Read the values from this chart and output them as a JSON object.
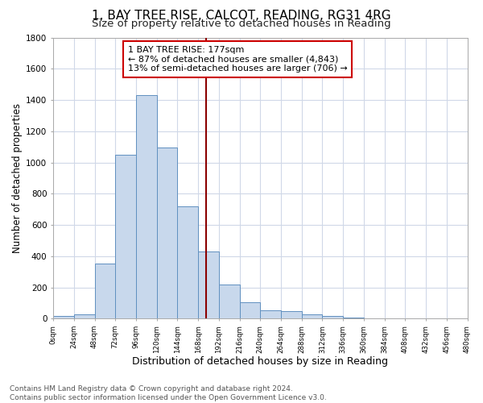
{
  "title": "1, BAY TREE RISE, CALCOT, READING, RG31 4RG",
  "subtitle": "Size of property relative to detached houses in Reading",
  "xlabel": "Distribution of detached houses by size in Reading",
  "ylabel": "Number of detached properties",
  "bin_edges": [
    0,
    24,
    48,
    72,
    96,
    120,
    144,
    168,
    192,
    216,
    240,
    264,
    288,
    312,
    336,
    360,
    384,
    408,
    432,
    456,
    480
  ],
  "counts": [
    15,
    30,
    350,
    1050,
    1430,
    1095,
    720,
    430,
    220,
    105,
    55,
    50,
    25,
    15,
    5,
    2,
    0,
    0,
    0,
    0
  ],
  "property_size": 177,
  "vline_color": "#8b0000",
  "bar_facecolor": "#c8d8ec",
  "bar_edgecolor": "#6090c0",
  "annotation_line1": "1 BAY TREE RISE: 177sqm",
  "annotation_line2": "← 87% of detached houses are smaller (4,843)",
  "annotation_line3": "13% of semi-detached houses are larger (706) →",
  "annotation_box_facecolor": "#ffffff",
  "annotation_box_edgecolor": "#cc0000",
  "footnote": "Contains HM Land Registry data © Crown copyright and database right 2024.\nContains public sector information licensed under the Open Government Licence v3.0.",
  "background_color": "#ffffff",
  "plot_background_color": "#ffffff",
  "grid_color": "#d0d8e8",
  "ylim": [
    0,
    1800
  ],
  "xtick_labels": [
    "0sqm",
    "24sqm",
    "48sqm",
    "72sqm",
    "96sqm",
    "120sqm",
    "144sqm",
    "168sqm",
    "192sqm",
    "216sqm",
    "240sqm",
    "264sqm",
    "288sqm",
    "312sqm",
    "336sqm",
    "360sqm",
    "384sqm",
    "408sqm",
    "432sqm",
    "456sqm",
    "480sqm"
  ],
  "ytick_vals": [
    0,
    200,
    400,
    600,
    800,
    1000,
    1200,
    1400,
    1600,
    1800
  ],
  "title_fontsize": 11,
  "subtitle_fontsize": 9.5,
  "xlabel_fontsize": 9,
  "ylabel_fontsize": 8.5,
  "annotation_fontsize": 8,
  "footnote_fontsize": 6.5
}
